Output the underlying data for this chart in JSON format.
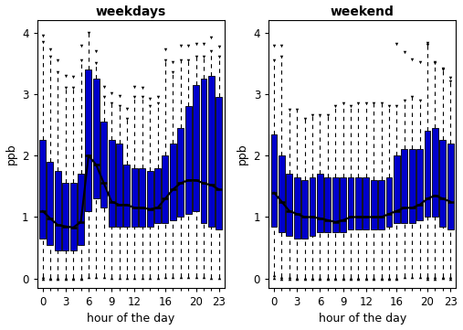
{
  "title_left": "weekdays",
  "title_right": "weekend",
  "xlabel": "hour of the day",
  "ylabel": "ppb",
  "ylim": [
    -0.15,
    4.2
  ],
  "yticks": [
    0,
    1,
    2,
    3,
    4
  ],
  "xticks": [
    0,
    3,
    6,
    9,
    12,
    16,
    20,
    23
  ],
  "hours": [
    0,
    1,
    2,
    3,
    4,
    5,
    6,
    7,
    8,
    9,
    10,
    11,
    12,
    13,
    14,
    15,
    16,
    17,
    18,
    19,
    20,
    21,
    22,
    23
  ],
  "weekday": {
    "q1": [
      0.65,
      0.55,
      0.45,
      0.45,
      0.45,
      0.55,
      1.1,
      1.3,
      1.15,
      0.85,
      0.85,
      0.85,
      0.85,
      0.85,
      0.85,
      0.9,
      0.9,
      0.95,
      1.0,
      1.05,
      1.1,
      0.9,
      0.85,
      0.8
    ],
    "q3": [
      2.25,
      1.9,
      1.75,
      1.55,
      1.55,
      1.7,
      3.4,
      3.25,
      2.55,
      2.25,
      2.2,
      1.85,
      1.8,
      1.8,
      1.75,
      1.8,
      2.0,
      2.2,
      2.45,
      2.8,
      3.15,
      3.25,
      3.3,
      2.95
    ],
    "median": [
      1.1,
      0.98,
      0.87,
      0.85,
      0.83,
      0.92,
      2.0,
      1.85,
      1.55,
      1.25,
      1.2,
      1.2,
      1.15,
      1.15,
      1.13,
      1.15,
      1.3,
      1.45,
      1.55,
      1.6,
      1.6,
      1.55,
      1.52,
      1.45
    ],
    "whisker_low": [
      0.02,
      0.01,
      0.01,
      0.01,
      0.01,
      0.01,
      0.02,
      0.03,
      0.02,
      0.01,
      0.01,
      0.01,
      0.01,
      0.01,
      0.01,
      0.01,
      0.02,
      0.02,
      0.02,
      0.02,
      0.02,
      0.02,
      0.01,
      0.01
    ],
    "whisker_high": [
      3.85,
      3.6,
      3.35,
      3.1,
      3.1,
      3.55,
      4.0,
      3.5,
      2.95,
      2.85,
      2.8,
      2.6,
      2.95,
      2.95,
      2.8,
      2.85,
      3.55,
      3.35,
      3.55,
      3.55,
      3.6,
      3.6,
      3.7,
      3.6
    ],
    "outliers_high": [
      3.95,
      3.72,
      3.55,
      3.3,
      3.28,
      3.78,
      null,
      3.7,
      3.12,
      3.02,
      2.97,
      2.76,
      3.12,
      3.1,
      2.93,
      2.96,
      3.72,
      3.52,
      3.78,
      3.78,
      3.82,
      3.82,
      3.92,
      3.77
    ],
    "outliers_low": [
      0.0,
      0.0,
      0.0,
      0.0,
      0.0,
      0.0,
      null,
      null,
      null,
      null,
      null,
      null,
      null,
      null,
      null,
      null,
      null,
      null,
      null,
      null,
      null,
      null,
      null,
      null
    ]
  },
  "weekend": {
    "q1": [
      0.85,
      0.75,
      0.7,
      0.65,
      0.65,
      0.7,
      0.75,
      0.75,
      0.75,
      0.75,
      0.8,
      0.8,
      0.8,
      0.8,
      0.8,
      0.85,
      0.9,
      0.9,
      0.9,
      0.95,
      1.0,
      1.0,
      0.85,
      0.8
    ],
    "q3": [
      2.35,
      2.0,
      1.7,
      1.65,
      1.6,
      1.65,
      1.7,
      1.65,
      1.65,
      1.65,
      1.65,
      1.65,
      1.65,
      1.6,
      1.6,
      1.65,
      2.0,
      2.1,
      2.1,
      2.1,
      2.4,
      2.45,
      2.25,
      2.2
    ],
    "median": [
      1.4,
      1.25,
      1.1,
      1.05,
      1.0,
      1.0,
      0.98,
      0.95,
      0.92,
      0.95,
      1.0,
      1.0,
      1.0,
      1.0,
      1.0,
      1.05,
      1.1,
      1.15,
      1.15,
      1.2,
      1.3,
      1.35,
      1.3,
      1.25
    ],
    "whisker_low": [
      0.05,
      0.03,
      0.02,
      0.01,
      0.01,
      0.01,
      0.01,
      0.01,
      0.01,
      0.01,
      0.01,
      0.01,
      0.01,
      0.01,
      0.01,
      0.01,
      0.01,
      0.02,
      0.02,
      0.03,
      0.02,
      0.02,
      0.02,
      0.02
    ],
    "whisker_high": [
      3.55,
      3.6,
      2.75,
      2.75,
      2.6,
      2.65,
      2.65,
      2.65,
      2.8,
      2.85,
      2.8,
      2.85,
      2.85,
      2.85,
      2.85,
      2.8,
      2.8,
      2.9,
      2.95,
      2.9,
      3.8,
      3.5,
      3.4,
      3.2
    ],
    "outliers_high": [
      3.78,
      3.78,
      null,
      null,
      null,
      null,
      null,
      null,
      null,
      null,
      null,
      null,
      null,
      null,
      null,
      null,
      3.82,
      3.68,
      3.57,
      3.52,
      3.83,
      3.52,
      3.42,
      3.27
    ],
    "outliers_low": [
      0.01,
      0.0,
      0.0,
      0.0,
      0.0,
      0.0,
      0.0,
      0.0,
      0.0,
      0.0,
      0.0,
      0.0,
      0.0,
      0.0,
      0.0,
      0.0,
      0.0,
      null,
      null,
      null,
      0.0,
      0.0,
      0.01,
      0.0
    ]
  },
  "box_color": "#0000CC",
  "median_line_color": "#000000",
  "whisker_color": "#000000",
  "flier_color": "#000000",
  "background_color": "#ffffff"
}
